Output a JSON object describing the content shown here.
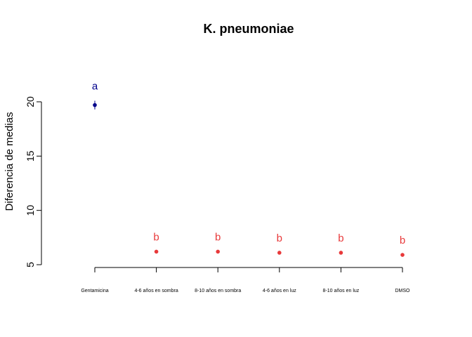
{
  "chart_data": {
    "type": "scatter",
    "title": "K. pneumoniae",
    "ylabel": "Diferencia de medias",
    "xlabel": "",
    "ylim": [
      5,
      20
    ],
    "yticks": [
      5,
      10,
      15,
      20
    ],
    "grid": false,
    "categories": [
      "Gentamicina",
      "4-6 años en sombra",
      "8-10 años en sombra",
      "4-6 años en luz",
      "8-10 años en luz",
      "DMSO"
    ],
    "values": [
      19.7,
      6.2,
      6.2,
      6.1,
      6.1,
      5.9
    ],
    "error_low": [
      19.3,
      6.2,
      6.2,
      6.1,
      6.1,
      5.9
    ],
    "error_high": [
      20.1,
      6.2,
      6.2,
      6.1,
      6.1,
      5.9
    ],
    "group_letters": [
      "a",
      "b",
      "b",
      "b",
      "b",
      "b"
    ],
    "group_colors": {
      "a": "#00008B",
      "b": "#E8393A"
    }
  }
}
